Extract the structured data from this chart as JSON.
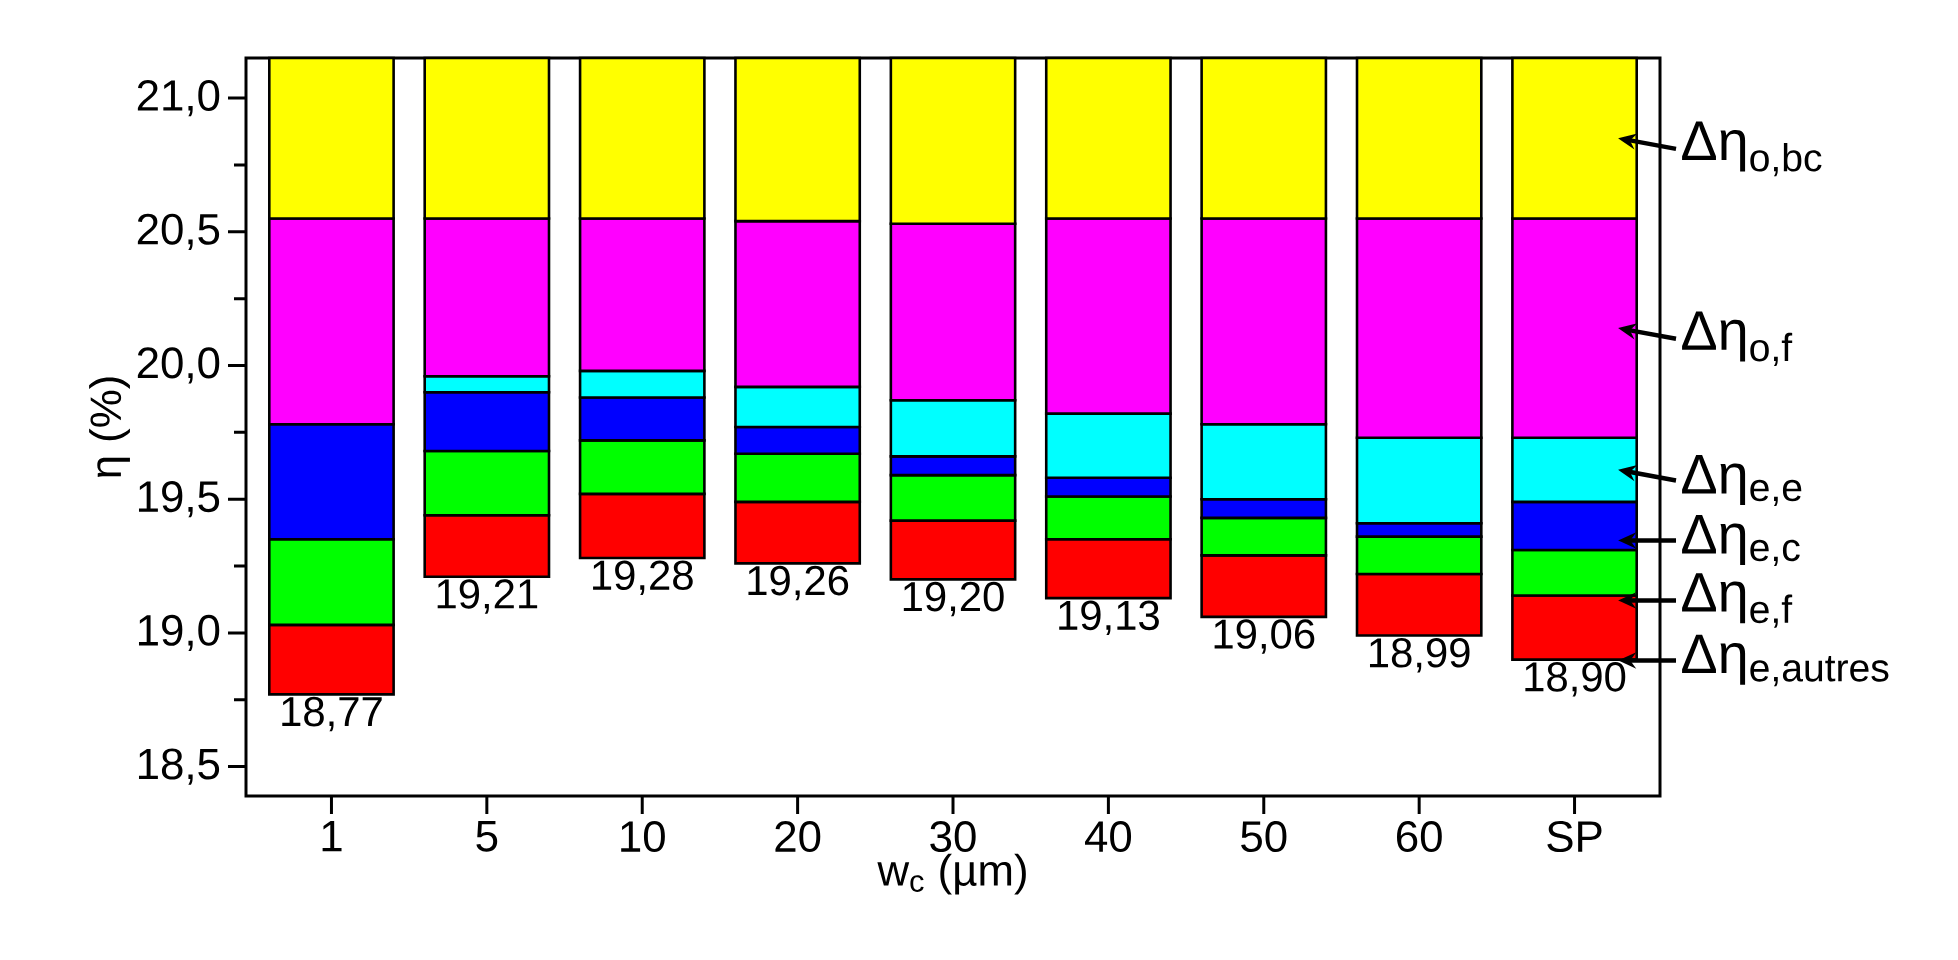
{
  "chart_data": {
    "type": "bar",
    "legend": "right",
    "xlabel": "w$_{c}$ (µm)",
    "ylabel": "η (%)",
    "categories": [
      "1",
      "5",
      "10",
      "20",
      "30",
      "40",
      "50",
      "60",
      "SP"
    ],
    "series": [
      {
        "name": "Δη$_{e,autres}$",
        "color": "#ff0000",
        "base": [
          18.77,
          19.21,
          19.28,
          19.26,
          19.2,
          19.13,
          19.06,
          18.99,
          18.9
        ],
        "values": [
          0.26,
          0.23,
          0.24,
          0.23,
          0.22,
          0.22,
          0.23,
          0.23,
          0.24
        ]
      },
      {
        "name": "Δη$_{e,f}$",
        "color": "#00ff00",
        "base": [
          19.03,
          19.44,
          19.52,
          19.49,
          19.42,
          19.35,
          19.29,
          19.22,
          19.14
        ],
        "values": [
          0.32,
          0.24,
          0.2,
          0.18,
          0.17,
          0.16,
          0.14,
          0.14,
          0.17
        ]
      },
      {
        "name": "Δη$_{e,c}$",
        "color": "#0000ff",
        "base": [
          19.35,
          19.68,
          19.72,
          19.67,
          19.59,
          19.51,
          19.43,
          19.36,
          19.31
        ],
        "values": [
          0.43,
          0.22,
          0.16,
          0.1,
          0.07,
          0.07,
          0.07,
          0.05,
          0.18
        ]
      },
      {
        "name": "Δη$_{e,e}$",
        "color": "#00ffff",
        "base": [
          null,
          19.9,
          19.88,
          19.77,
          19.66,
          19.58,
          19.5,
          19.41,
          19.49
        ],
        "values": [
          null,
          0.06,
          0.1,
          0.15,
          0.21,
          0.24,
          0.28,
          0.32,
          0.24
        ]
      },
      {
        "name": "Δη$_{o,f}$",
        "color": "#ff00ff",
        "base": [
          19.78,
          19.96,
          19.98,
          19.92,
          19.87,
          19.82,
          19.78,
          19.73,
          19.73
        ],
        "values": [
          0.77,
          0.59,
          0.57,
          0.62,
          0.66,
          0.73,
          0.77,
          0.82,
          0.82
        ]
      },
      {
        "name": "Δη$_{o,bc}$",
        "color": "#ffff00",
        "base": [
          20.55,
          20.55,
          20.55,
          20.54,
          20.53,
          20.55,
          20.55,
          20.55,
          20.55
        ],
        "values": [
          0.6,
          0.6,
          0.6,
          0.61,
          0.62,
          0.6,
          0.6,
          0.6,
          0.6
        ]
      }
    ],
    "annotations": [
      "18,77",
      "19,21",
      "19,28",
      "19,26",
      "19,20",
      "19,13",
      "19,06",
      "18,99",
      "18,90"
    ],
    "ylim": [
      18.39,
      21.15
    ],
    "yticks": [
      {
        "value": 18.5,
        "label": "18,5"
      },
      {
        "value": 19.0,
        "label": "19,0"
      },
      {
        "value": 19.5,
        "label": "19,5"
      },
      {
        "value": 20.0,
        "label": "20,0"
      },
      {
        "value": 20.5,
        "label": "20,5"
      },
      {
        "value": 21.0,
        "label": "21,0"
      }
    ]
  }
}
